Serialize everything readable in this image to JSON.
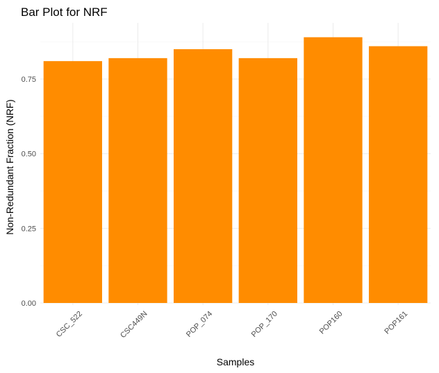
{
  "chart_data": {
    "type": "bar",
    "title": "Bar Plot for NRF",
    "xlabel": "Samples",
    "ylabel": "Non-Redundant Fraction (NRF)",
    "categories": [
      "CSC_522",
      "CSC449N",
      "POP_074",
      "POP_170",
      "POP160",
      "POP161"
    ],
    "values": [
      0.81,
      0.82,
      0.85,
      0.82,
      0.89,
      0.86
    ],
    "ylim": [
      0,
      0.9
    ],
    "yticks": [
      0,
      0.25,
      0.5,
      0.75
    ],
    "ytick_labels": [
      "0.00",
      "0.25",
      "0.50",
      "0.75"
    ],
    "bar_color": "#ff8c00",
    "grid": true,
    "legend": "none"
  }
}
